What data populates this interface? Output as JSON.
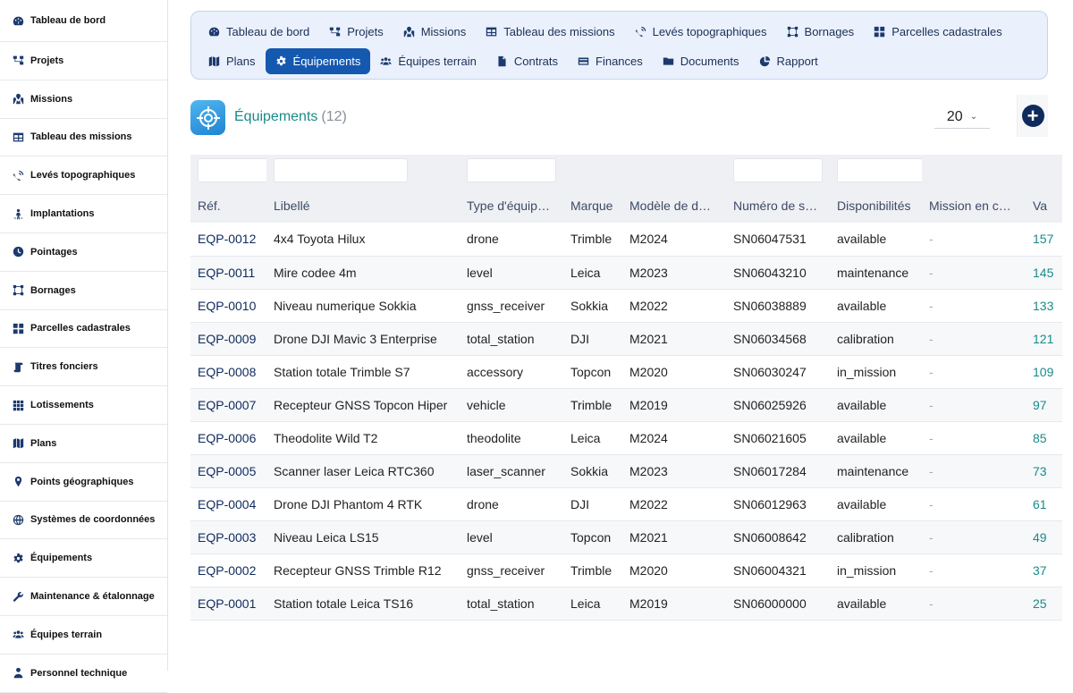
{
  "sidebar": {
    "items": [
      {
        "label": "Tableau de bord",
        "icon": "dashboard-icon"
      },
      {
        "label": "Projets",
        "icon": "sitemap-icon"
      },
      {
        "label": "Missions",
        "icon": "map-marked-icon"
      },
      {
        "label": "Tableau des missions",
        "icon": "table-icon"
      },
      {
        "label": "Levés topographiques",
        "icon": "satellite-dish-icon"
      },
      {
        "label": "Implantations",
        "icon": "person-pin-icon"
      },
      {
        "label": "Pointages",
        "icon": "clock-icon"
      },
      {
        "label": "Bornages",
        "icon": "vector-square-icon"
      },
      {
        "label": "Parcelles cadastrales",
        "icon": "grid-large-icon"
      },
      {
        "label": "Titres fonciers",
        "icon": "scroll-icon"
      },
      {
        "label": "Lotissements",
        "icon": "grid-small-icon"
      },
      {
        "label": "Plans",
        "icon": "map-icon"
      },
      {
        "label": "Points géographiques",
        "icon": "map-pin-icon"
      },
      {
        "label": "Systèmes de coordonnées",
        "icon": "globe-icon"
      },
      {
        "label": "Équipements",
        "icon": "gear-icon"
      },
      {
        "label": "Maintenance & étalonnage",
        "icon": "wrench-icon"
      },
      {
        "label": "Équipes terrain",
        "icon": "users-icon"
      },
      {
        "label": "Personnel technique",
        "icon": "user-tie-icon"
      }
    ]
  },
  "nav": {
    "row1": [
      {
        "label": "Tableau de bord",
        "icon": "dashboard-icon",
        "active": false
      },
      {
        "label": "Projets",
        "icon": "sitemap-icon",
        "active": false
      },
      {
        "label": "Missions",
        "icon": "map-marked-icon",
        "active": false
      },
      {
        "label": "Tableau des missions",
        "icon": "table-icon",
        "active": false
      },
      {
        "label": "Levés topographiques",
        "icon": "satellite-dish-icon",
        "active": false
      },
      {
        "label": "Bornages",
        "icon": "vector-square-icon",
        "active": false
      },
      {
        "label": "Parcelles cadastrales",
        "icon": "grid-large-icon",
        "active": false
      }
    ],
    "row2": [
      {
        "label": "Plans",
        "icon": "map-icon",
        "active": false
      },
      {
        "label": "Équipements",
        "icon": "gear-icon",
        "active": true
      },
      {
        "label": "Équipes terrain",
        "icon": "users-icon",
        "active": false
      },
      {
        "label": "Contrats",
        "icon": "file-contract-icon",
        "active": false
      },
      {
        "label": "Finances",
        "icon": "credit-card-icon",
        "active": false
      },
      {
        "label": "Documents",
        "icon": "folder-icon",
        "active": false
      },
      {
        "label": "Rapport",
        "icon": "pie-chart-icon",
        "active": false
      }
    ]
  },
  "header": {
    "title": "Équipements",
    "count": "(12)",
    "page_size": "20",
    "icon": "crosshair-icon"
  },
  "table": {
    "columns": [
      "Réf.",
      "Libellé",
      "Type d'équip…",
      "Marque",
      "Modèle de d…",
      "Numéro de s…",
      "Disponibilités",
      "Mission en c…",
      "Va"
    ],
    "filter_columns": [
      0,
      1,
      2,
      5,
      6
    ],
    "rows": [
      [
        "EQP-0012",
        "4x4 Toyota Hilux",
        "drone",
        "Trimble",
        "M2024",
        "SN06047531",
        "available",
        "-",
        "157"
      ],
      [
        "EQP-0011",
        "Mire codee 4m",
        "level",
        "Leica",
        "M2023",
        "SN06043210",
        "maintenance",
        "-",
        "145"
      ],
      [
        "EQP-0010",
        "Niveau numerique Sokkia",
        "gnss_receiver",
        "Sokkia",
        "M2022",
        "SN06038889",
        "available",
        "-",
        "133"
      ],
      [
        "EQP-0009",
        "Drone DJI Mavic 3 Enterprise",
        "total_station",
        "DJI",
        "M2021",
        "SN06034568",
        "calibration",
        "-",
        "121"
      ],
      [
        "EQP-0008",
        "Station totale Trimble S7",
        "accessory",
        "Topcon",
        "M2020",
        "SN06030247",
        "in_mission",
        "-",
        "109"
      ],
      [
        "EQP-0007",
        "Recepteur GNSS Topcon Hiper",
        "vehicle",
        "Trimble",
        "M2019",
        "SN06025926",
        "available",
        "-",
        "97"
      ],
      [
        "EQP-0006",
        "Theodolite Wild T2",
        "theodolite",
        "Leica",
        "M2024",
        "SN06021605",
        "available",
        "-",
        "85"
      ],
      [
        "EQP-0005",
        "Scanner laser Leica RTC360",
        "laser_scanner",
        "Sokkia",
        "M2023",
        "SN06017284",
        "maintenance",
        "-",
        "73"
      ],
      [
        "EQP-0004",
        "Drone DJI Phantom 4 RTK",
        "drone",
        "DJI",
        "M2022",
        "SN06012963",
        "available",
        "-",
        "61"
      ],
      [
        "EQP-0003",
        "Niveau Leica LS15",
        "level",
        "Topcon",
        "M2021",
        "SN06008642",
        "calibration",
        "-",
        "49"
      ],
      [
        "EQP-0002",
        "Recepteur GNSS Trimble R12",
        "gnss_receiver",
        "Trimble",
        "M2020",
        "SN06004321",
        "in_mission",
        "-",
        "37"
      ],
      [
        "EQP-0001",
        "Station totale Leica TS16",
        "total_station",
        "Leica",
        "M2019",
        "SN06000000",
        "available",
        "-",
        "25"
      ]
    ]
  }
}
